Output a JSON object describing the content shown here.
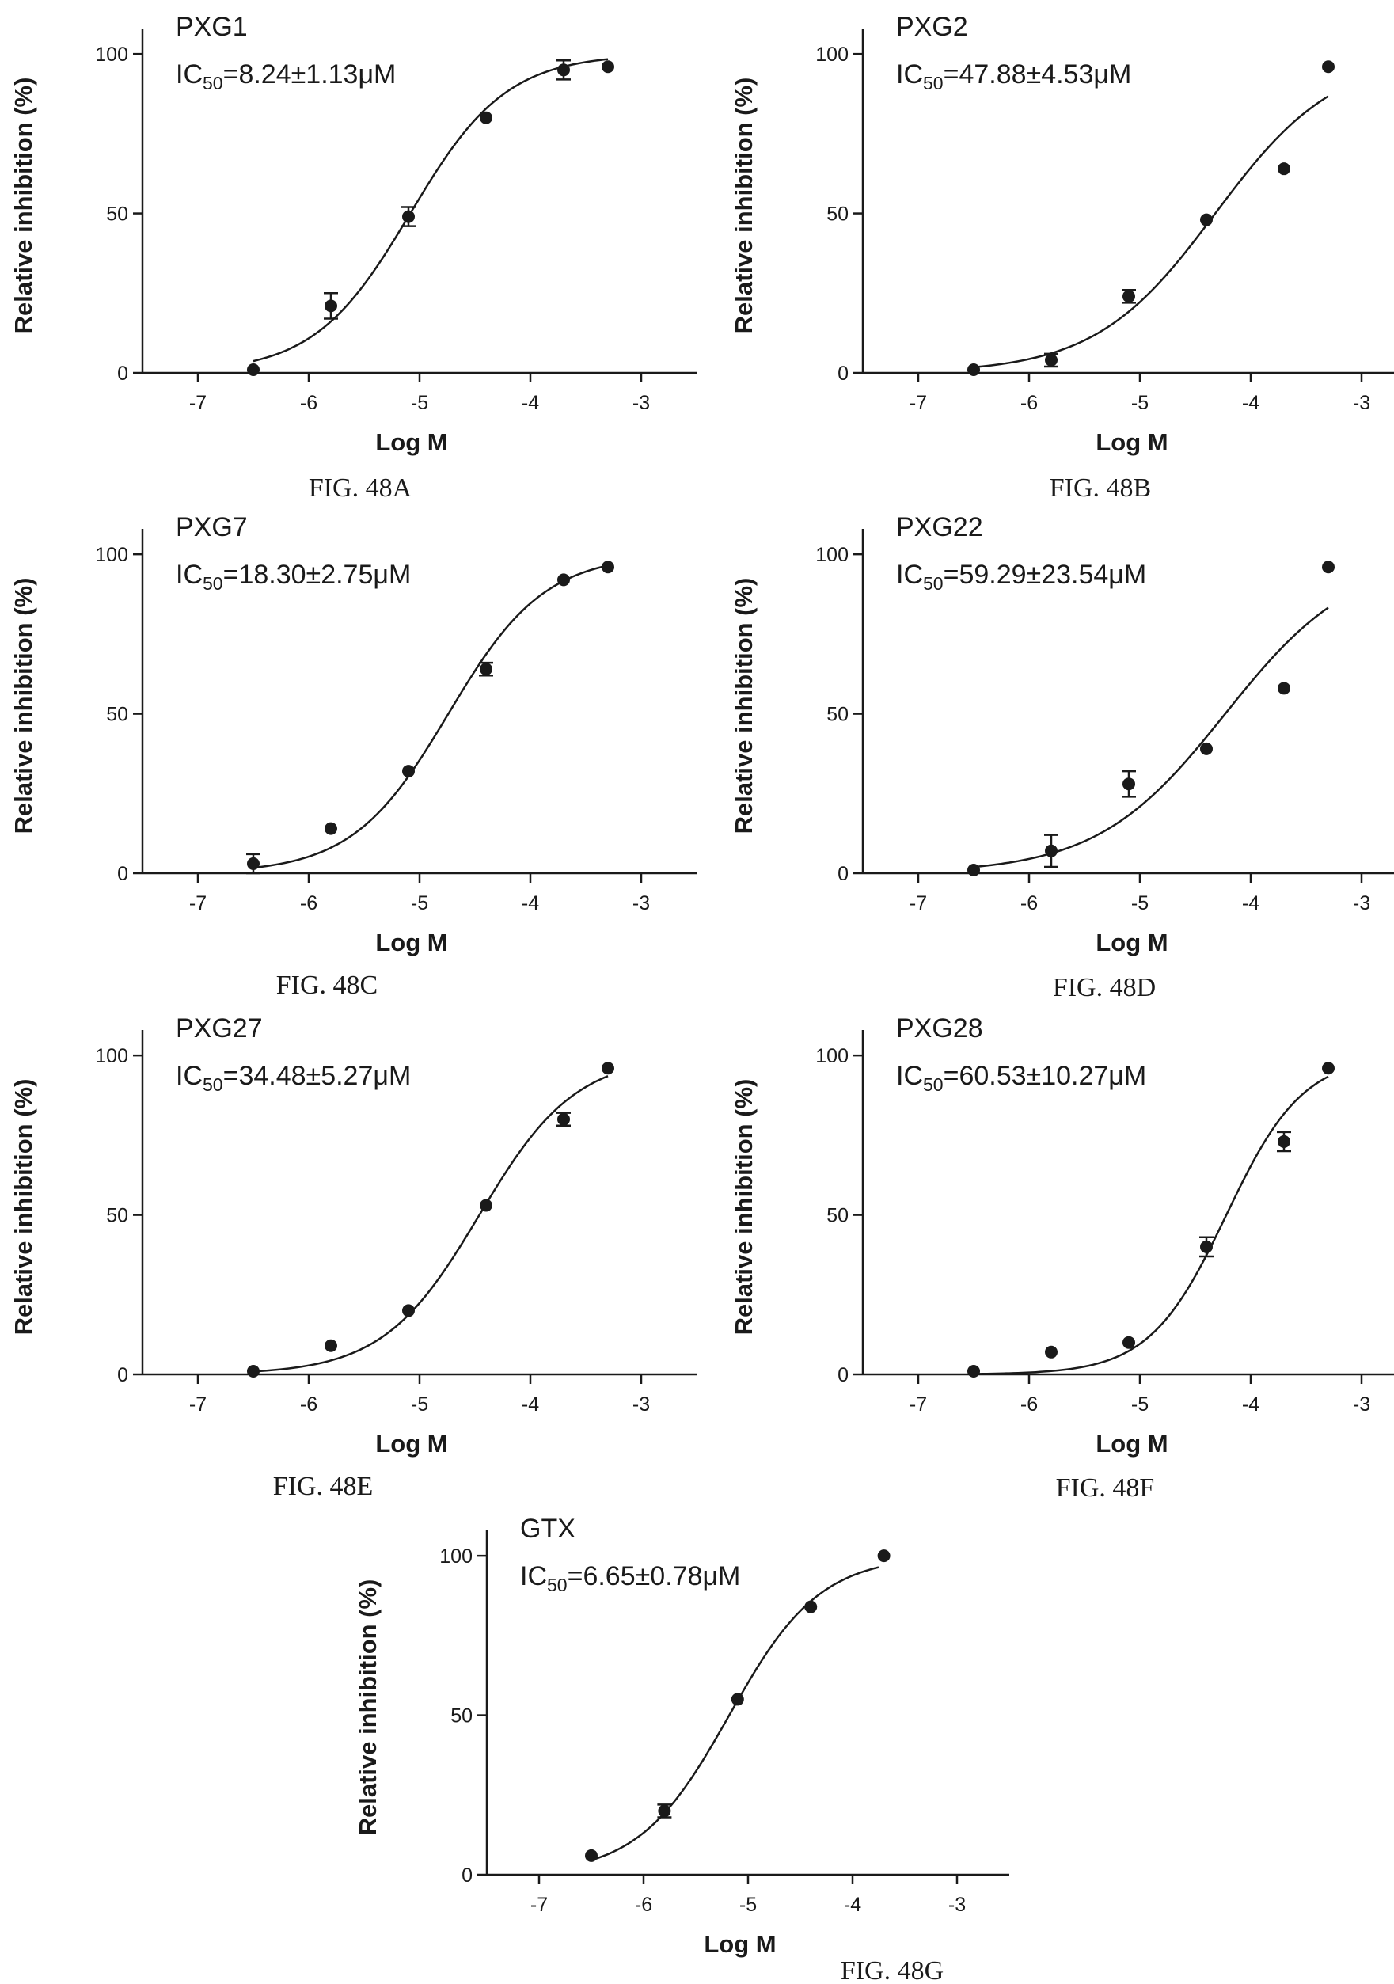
{
  "figure": {
    "captions": [
      "FIG. 48A",
      "FIG. 48B",
      "FIG. 48C",
      "FIG. 48D",
      "FIG. 48E",
      "FIG. 48F",
      "FIG. 48G"
    ]
  },
  "chart_data": [
    {
      "type": "scatter",
      "title": "PXG1",
      "annotation": {
        "prefix": "IC",
        "subscript": "50",
        "suffix": "=8.24±1.13μM"
      },
      "caption": "FIG. 48A",
      "xlabel": "Log M",
      "ylabel": "Relative inhibition (%)",
      "xlim": [
        -7.5,
        -2.5
      ],
      "ylim": [
        0,
        105
      ],
      "xticks": [
        -7,
        -6,
        -5,
        -4,
        -3
      ],
      "yticks": [
        0,
        50,
        100
      ],
      "series": [
        {
          "x": [
            -6.5,
            -5.8,
            -5.1,
            -4.4,
            -3.7,
            -3.3
          ],
          "y": [
            1,
            21,
            49,
            80,
            95,
            96
          ],
          "error": [
            0,
            4,
            3,
            0,
            3,
            0
          ],
          "fit": {
            "bottom": 0,
            "top": 100,
            "logIC50": -5.084,
            "hill": 1.0,
            "xrange": [
              -6.5,
              -3.3
            ]
          }
        }
      ]
    },
    {
      "type": "scatter",
      "title": "PXG2",
      "annotation": {
        "prefix": "IC",
        "subscript": "50",
        "suffix": "=47.88±4.53μM"
      },
      "caption": "FIG. 48B",
      "xlabel": "Log M",
      "ylabel": "Relative inhibition (%)",
      "xlim": [
        -7.5,
        -2.5
      ],
      "ylim": [
        0,
        105
      ],
      "xticks": [
        -7,
        -6,
        -5,
        -4,
        -3
      ],
      "yticks": [
        0,
        50,
        100
      ],
      "series": [
        {
          "x": [
            -6.5,
            -5.8,
            -5.1,
            -4.4,
            -3.7,
            -3.3
          ],
          "y": [
            1,
            4,
            24,
            48,
            64,
            96
          ],
          "error": [
            0,
            2,
            2,
            0,
            0,
            0
          ],
          "fit": {
            "bottom": 0,
            "top": 100,
            "logIC50": -4.32,
            "hill": 0.8,
            "xrange": [
              -6.5,
              -3.3
            ]
          }
        }
      ]
    },
    {
      "type": "scatter",
      "title": "PXG7",
      "annotation": {
        "prefix": "IC",
        "subscript": "50",
        "suffix": "=18.30±2.75μM"
      },
      "caption": "FIG. 48C",
      "xlabel": "Log M",
      "ylabel": "Relative inhibition (%)",
      "xlim": [
        -7.5,
        -2.5
      ],
      "ylim": [
        0,
        105
      ],
      "xticks": [
        -7,
        -6,
        -5,
        -4,
        -3
      ],
      "yticks": [
        0,
        50,
        100
      ],
      "series": [
        {
          "x": [
            -6.5,
            -5.8,
            -5.1,
            -4.4,
            -3.7,
            -3.3
          ],
          "y": [
            3,
            14,
            32,
            64,
            92,
            96
          ],
          "error": [
            3,
            0,
            0,
            2,
            0,
            0
          ],
          "fit": {
            "bottom": 0,
            "top": 100,
            "logIC50": -4.74,
            "hill": 1.0,
            "xrange": [
              -6.5,
              -3.3
            ]
          }
        }
      ]
    },
    {
      "type": "scatter",
      "title": "PXG22",
      "annotation": {
        "prefix": "IC",
        "subscript": "50",
        "suffix": "=59.29±23.54μM"
      },
      "caption": "FIG. 48D",
      "xlabel": "Log M",
      "ylabel": "Relative inhibition (%)",
      "xlim": [
        -7.5,
        -2.5
      ],
      "ylim": [
        0,
        105
      ],
      "xticks": [
        -7,
        -6,
        -5,
        -4,
        -3
      ],
      "yticks": [
        0,
        50,
        100
      ],
      "series": [
        {
          "x": [
            -6.5,
            -5.8,
            -5.1,
            -4.4,
            -3.7,
            -3.3
          ],
          "y": [
            1,
            7,
            28,
            39,
            58,
            96
          ],
          "error": [
            0,
            5,
            4,
            0,
            0,
            0
          ],
          "fit": {
            "bottom": 0,
            "top": 100,
            "logIC50": -4.23,
            "hill": 0.75,
            "xrange": [
              -6.5,
              -3.3
            ]
          }
        }
      ]
    },
    {
      "type": "scatter",
      "title": "PXG27",
      "annotation": {
        "prefix": "IC",
        "subscript": "50",
        "suffix": "=34.48±5.27μM"
      },
      "caption": "FIG. 48E",
      "xlabel": "Log M",
      "ylabel": "Relative inhibition (%)",
      "xlim": [
        -7.5,
        -2.5
      ],
      "ylim": [
        0,
        105
      ],
      "xticks": [
        -7,
        -6,
        -5,
        -4,
        -3
      ],
      "yticks": [
        0,
        50,
        100
      ],
      "series": [
        {
          "x": [
            -6.5,
            -5.8,
            -5.1,
            -4.4,
            -3.7,
            -3.3
          ],
          "y": [
            1,
            9,
            20,
            53,
            80,
            96
          ],
          "error": [
            0,
            0,
            0,
            0,
            2,
            0
          ],
          "fit": {
            "bottom": 0,
            "top": 100,
            "logIC50": -4.46,
            "hill": 1.0,
            "xrange": [
              -6.5,
              -3.3
            ]
          }
        }
      ]
    },
    {
      "type": "scatter",
      "title": "PXG28",
      "annotation": {
        "prefix": "IC",
        "subscript": "50",
        "suffix": "=60.53±10.27μM"
      },
      "caption": "FIG. 48F",
      "xlabel": "Log M",
      "ylabel": "Relative inhibition (%)",
      "xlim": [
        -7.5,
        -2.5
      ],
      "ylim": [
        0,
        105
      ],
      "xticks": [
        -7,
        -6,
        -5,
        -4,
        -3
      ],
      "yticks": [
        0,
        50,
        100
      ],
      "series": [
        {
          "x": [
            -6.5,
            -5.8,
            -5.1,
            -4.4,
            -3.7,
            -3.3
          ],
          "y": [
            1,
            7,
            10,
            40,
            73,
            96
          ],
          "error": [
            0,
            0,
            0,
            3,
            3,
            0
          ],
          "fit": {
            "bottom": 0,
            "top": 100,
            "logIC50": -4.22,
            "hill": 1.25,
            "xrange": [
              -6.5,
              -3.3
            ]
          }
        }
      ]
    },
    {
      "type": "scatter",
      "title": "GTX",
      "annotation": {
        "prefix": "IC",
        "subscript": "50",
        "suffix": "=6.65±0.78μM"
      },
      "caption": "FIG. 48G",
      "xlabel": "Log M",
      "ylabel": "Relative inhibition (%)",
      "xlim": [
        -7.5,
        -2.5
      ],
      "ylim": [
        0,
        105
      ],
      "xticks": [
        -7,
        -6,
        -5,
        -4,
        -3
      ],
      "yticks": [
        0,
        50,
        100
      ],
      "series": [
        {
          "x": [
            -6.5,
            -5.8,
            -5.1,
            -4.4,
            -3.7
          ],
          "y": [
            6,
            20,
            55,
            84,
            100
          ],
          "error": [
            0,
            2,
            0,
            0,
            0
          ],
          "fit": {
            "bottom": 0,
            "top": 100,
            "logIC50": -5.18,
            "hill": 1.0,
            "xrange": [
              -6.5,
              -3.75
            ]
          }
        }
      ]
    }
  ]
}
